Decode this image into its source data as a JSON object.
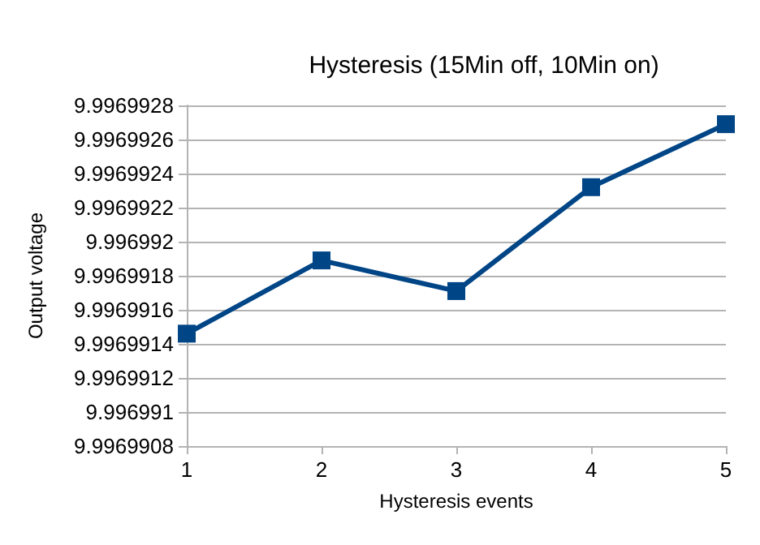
{
  "chart_data": {
    "type": "line",
    "title": "Hysteresis (15Min off, 10Min on)",
    "xlabel": "Hysteresis events",
    "ylabel": "Output voltage",
    "x": [
      1,
      2,
      3,
      4,
      5
    ],
    "series": [
      {
        "color": "#004586",
        "values": [
          9.99699146,
          9.99699189,
          9.99699171,
          9.99699232,
          9.99699269
        ]
      }
    ],
    "xlim": [
      1,
      5
    ],
    "xticks": [
      1,
      2,
      3,
      4,
      5
    ],
    "ylim": [
      9.9969908,
      9.9969928
    ],
    "yticks": [
      9.9969908,
      9.996991,
      9.9969912,
      9.9969914,
      9.9969916,
      9.9969918,
      9.996992,
      9.9969922,
      9.9969924,
      9.9969926,
      9.9969928
    ],
    "grid": "y",
    "marker": "square",
    "line_style": "solid"
  }
}
